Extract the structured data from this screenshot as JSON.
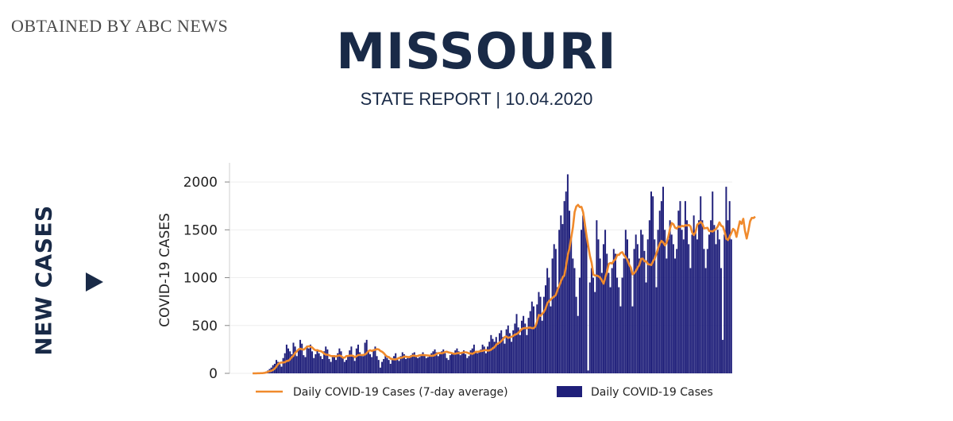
{
  "header": {
    "source": "OBTAINED BY ABC NEWS",
    "title": "MISSOURI",
    "subtitle": "STATE REPORT | 10.04.2020"
  },
  "side": {
    "label": "NEW CASES",
    "arrow_icon": "play-triangle-icon"
  },
  "colors": {
    "navy": "#192a47",
    "bar": "#1f1f7a",
    "line": "#f08a2c"
  },
  "chart_data": {
    "type": "bar",
    "ylabel": "COVID-19 CASES",
    "ylim": [
      0,
      2200
    ],
    "yticks": [
      0,
      500,
      1000,
      1500,
      2000
    ],
    "y_tick_labels": [
      "0",
      "500",
      "1000",
      "1500",
      "2000"
    ],
    "series": [
      {
        "name": "Daily COVID-19 Cases",
        "type": "bar",
        "values": [
          0,
          0,
          0,
          0,
          0,
          0,
          4,
          8,
          18,
          30,
          45,
          60,
          85,
          100,
          140,
          120,
          95,
          70,
          160,
          210,
          300,
          260,
          230,
          200,
          320,
          280,
          180,
          250,
          350,
          310,
          190,
          170,
          290,
          260,
          300,
          230,
          160,
          200,
          240,
          210,
          180,
          150,
          230,
          280,
          250,
          150,
          120,
          170,
          190,
          140,
          210,
          260,
          230,
          170,
          120,
          140,
          190,
          240,
          280,
          180,
          130,
          260,
          300,
          220,
          200,
          180,
          320,
          350,
          230,
          200,
          170,
          250,
          280,
          180,
          140,
          60,
          120,
          150,
          190,
          160,
          140,
          100,
          160,
          180,
          210,
          160,
          130,
          180,
          220,
          200,
          150,
          160,
          180,
          190,
          210,
          220,
          190,
          160,
          170,
          200,
          220,
          190,
          160,
          170,
          190,
          210,
          230,
          250,
          220,
          180,
          200,
          230,
          250,
          210,
          160,
          140,
          190,
          220,
          200,
          240,
          260,
          230,
          190,
          210,
          240,
          200,
          160,
          180,
          240,
          260,
          300,
          220,
          210,
          230,
          250,
          300,
          280,
          210,
          280,
          330,
          400,
          360,
          330,
          380,
          300,
          420,
          450,
          380,
          310,
          460,
          500,
          420,
          330,
          450,
          520,
          620,
          480,
          400,
          550,
          600,
          520,
          400,
          580,
          650,
          750,
          700,
          480,
          720,
          850,
          800,
          550,
          800,
          920,
          1100,
          1000,
          700,
          1200,
          1350,
          1300,
          900,
          1500,
          1650,
          1560,
          1800,
          1900,
          2080,
          1700,
          1400,
          1200,
          1100,
          800,
          600,
          1000,
          1500,
          1650,
          1550,
          1450,
          30,
          950,
          1100,
          1000,
          850,
          1600,
          1400,
          1200,
          1050,
          1350,
          1500,
          1250,
          1050,
          900,
          1100,
          1300,
          1250,
          1000,
          900,
          700,
          1000,
          1200,
          1500,
          1400,
          1200,
          1100,
          700,
          1300,
          1450,
          1350,
          1200,
          1500,
          1450,
          1280,
          950,
          1400,
          1600,
          1900,
          1850,
          1400,
          900,
          1500,
          1700,
          1800,
          1950,
          1500,
          1200,
          1400,
          1600,
          1450,
          1350,
          1200,
          1300,
          1700,
          1800,
          1500,
          1400,
          1800,
          1600,
          1350,
          1100,
          1450,
          1650,
          1500,
          1400,
          1600,
          1850,
          1600,
          1300,
          1100,
          1300,
          1450,
          1600,
          1900,
          1550,
          1350,
          1500,
          1400,
          1100,
          350,
          1450,
          1950,
          1600,
          1800,
          1400
        ]
      },
      {
        "name": "Daily COVID-19 Cases (7-day average)",
        "type": "line",
        "values": [
          0,
          0,
          0,
          1,
          1,
          2,
          3,
          5,
          9,
          16,
          22,
          27,
          36,
          50,
          71,
          98,
          109,
          113,
          114,
          117,
          129,
          131,
          146,
          169,
          185,
          214,
          230,
          251,
          257,
          251,
          248,
          262,
          279,
          283,
          278,
          270,
          252,
          240,
          243,
          234,
          232,
          222,
          206,
          196,
          195,
          188,
          181,
          180,
          180,
          176,
          184,
          187,
          180,
          164,
          164,
          180,
          182,
          185,
          186,
          183,
          169,
          180,
          191,
          193,
          190,
          193,
          197,
          212,
          233,
          241,
          234,
          242,
          246,
          253,
          250,
          234,
          226,
          211,
          189,
          174,
          170,
          153,
          149,
          147,
          146,
          152,
          162,
          162,
          166,
          176,
          174,
          171,
          168,
          178,
          185,
          185,
          179,
          183,
          189,
          191,
          191,
          190,
          188,
          187,
          185,
          183,
          185,
          191,
          204,
          211,
          212,
          209,
          215,
          223,
          226,
          219,
          216,
          211,
          206,
          205,
          210,
          212,
          211,
          216,
          220,
          220,
          217,
          208,
          208,
          204,
          213,
          226,
          225,
          228,
          233,
          235,
          241,
          244,
          237,
          240,
          248,
          262,
          274,
          299,
          312,
          322,
          337,
          358,
          381,
          385,
          371,
          377,
          382,
          392,
          405,
          411,
          424,
          443,
          464,
          471,
          474,
          471,
          478,
          478,
          472,
          472,
          492,
          542,
          610,
          601,
          623,
          643,
          679,
          732,
          755,
          772,
          790,
          803,
          820,
          874,
          915,
          963,
          1003,
          1026,
          1125,
          1237,
          1309,
          1418,
          1527,
          1685,
          1744,
          1761,
          1738,
          1740,
          1683,
          1563,
          1439,
          1331,
          1226,
          1154,
          1031,
          1022,
          1022,
          1014,
          1000,
          970,
          937,
          1002,
          1062,
          1143,
          1154,
          1148,
          1178,
          1192,
          1239,
          1237,
          1259,
          1266,
          1235,
          1214,
          1185,
          1136,
          1105,
          1035,
          1047,
          1072,
          1107,
          1132,
          1196,
          1199,
          1171,
          1171,
          1142,
          1137,
          1132,
          1170,
          1199,
          1250,
          1307,
          1357,
          1384,
          1369,
          1338,
          1367,
          1430,
          1513,
          1571,
          1558,
          1522,
          1513,
          1536,
          1529,
          1542,
          1535,
          1549,
          1544,
          1551,
          1536,
          1471,
          1445,
          1478,
          1554,
          1568,
          1582,
          1561,
          1515,
          1518,
          1521,
          1487,
          1486,
          1482,
          1496,
          1510,
          1535,
          1578,
          1543,
          1534,
          1483,
          1408,
          1393,
          1431,
          1467,
          1510,
          1494,
          1426,
          1512,
          1589,
          1562,
          1615,
          1488,
          1409,
          1492,
          1590,
          1625,
          1623,
          1638
        ]
      }
    ],
    "legend": {
      "position": "bottom",
      "entries": [
        "Daily COVID-19 Cases (7-day average)",
        "Daily COVID-19 Cases"
      ]
    }
  }
}
